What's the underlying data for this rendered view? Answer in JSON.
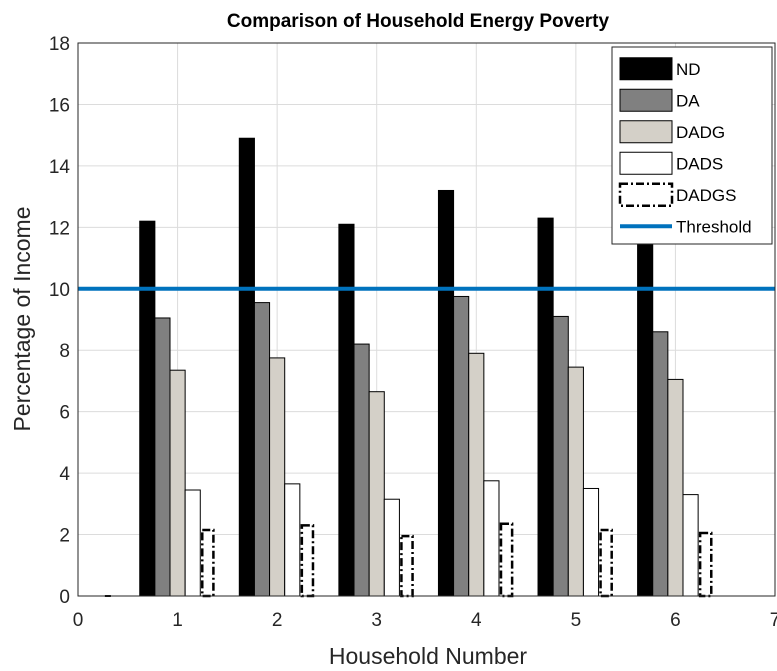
{
  "chart_data": {
    "type": "bar",
    "title": "Comparison of Household Energy Poverty",
    "xlabel": "Household Number",
    "ylabel": "Percentage of Income",
    "xlim": [
      0,
      7
    ],
    "ylim": [
      0,
      18
    ],
    "xticks": [
      "0",
      "1",
      "2",
      "3",
      "4",
      "5",
      "6",
      "7"
    ],
    "yticks": [
      "0",
      "2",
      "4",
      "6",
      "8",
      "10",
      "12",
      "14",
      "16",
      "18"
    ],
    "grid": true,
    "legend_position": "top-right",
    "categories": [
      1,
      2,
      3,
      4,
      5,
      6
    ],
    "series": [
      {
        "name": "ND",
        "values": [
          12.2,
          14.9,
          12.1,
          13.2,
          12.3,
          11.7
        ],
        "fill": "#000000",
        "stroke": "#000000",
        "style": "solid"
      },
      {
        "name": "DA",
        "values": [
          9.05,
          9.55,
          8.2,
          9.75,
          9.1,
          8.6
        ],
        "fill": "#808080",
        "stroke": "#000000",
        "style": "solid"
      },
      {
        "name": "DADG",
        "values": [
          7.35,
          7.75,
          6.65,
          7.9,
          7.45,
          7.05
        ],
        "fill": "#d4d0c8",
        "stroke": "#000000",
        "style": "solid"
      },
      {
        "name": "DADS",
        "values": [
          3.45,
          3.65,
          3.15,
          3.75,
          3.5,
          3.3
        ],
        "fill": "#ffffff",
        "stroke": "#000000",
        "style": "solid"
      },
      {
        "name": "DADGS",
        "values": [
          2.15,
          2.3,
          1.95,
          2.35,
          2.15,
          2.05
        ],
        "fill": "#ffffff",
        "stroke": "#000000",
        "style": "dashdot"
      }
    ],
    "threshold": {
      "name": "Threshold",
      "value": 10,
      "color": "#0072bd"
    }
  }
}
